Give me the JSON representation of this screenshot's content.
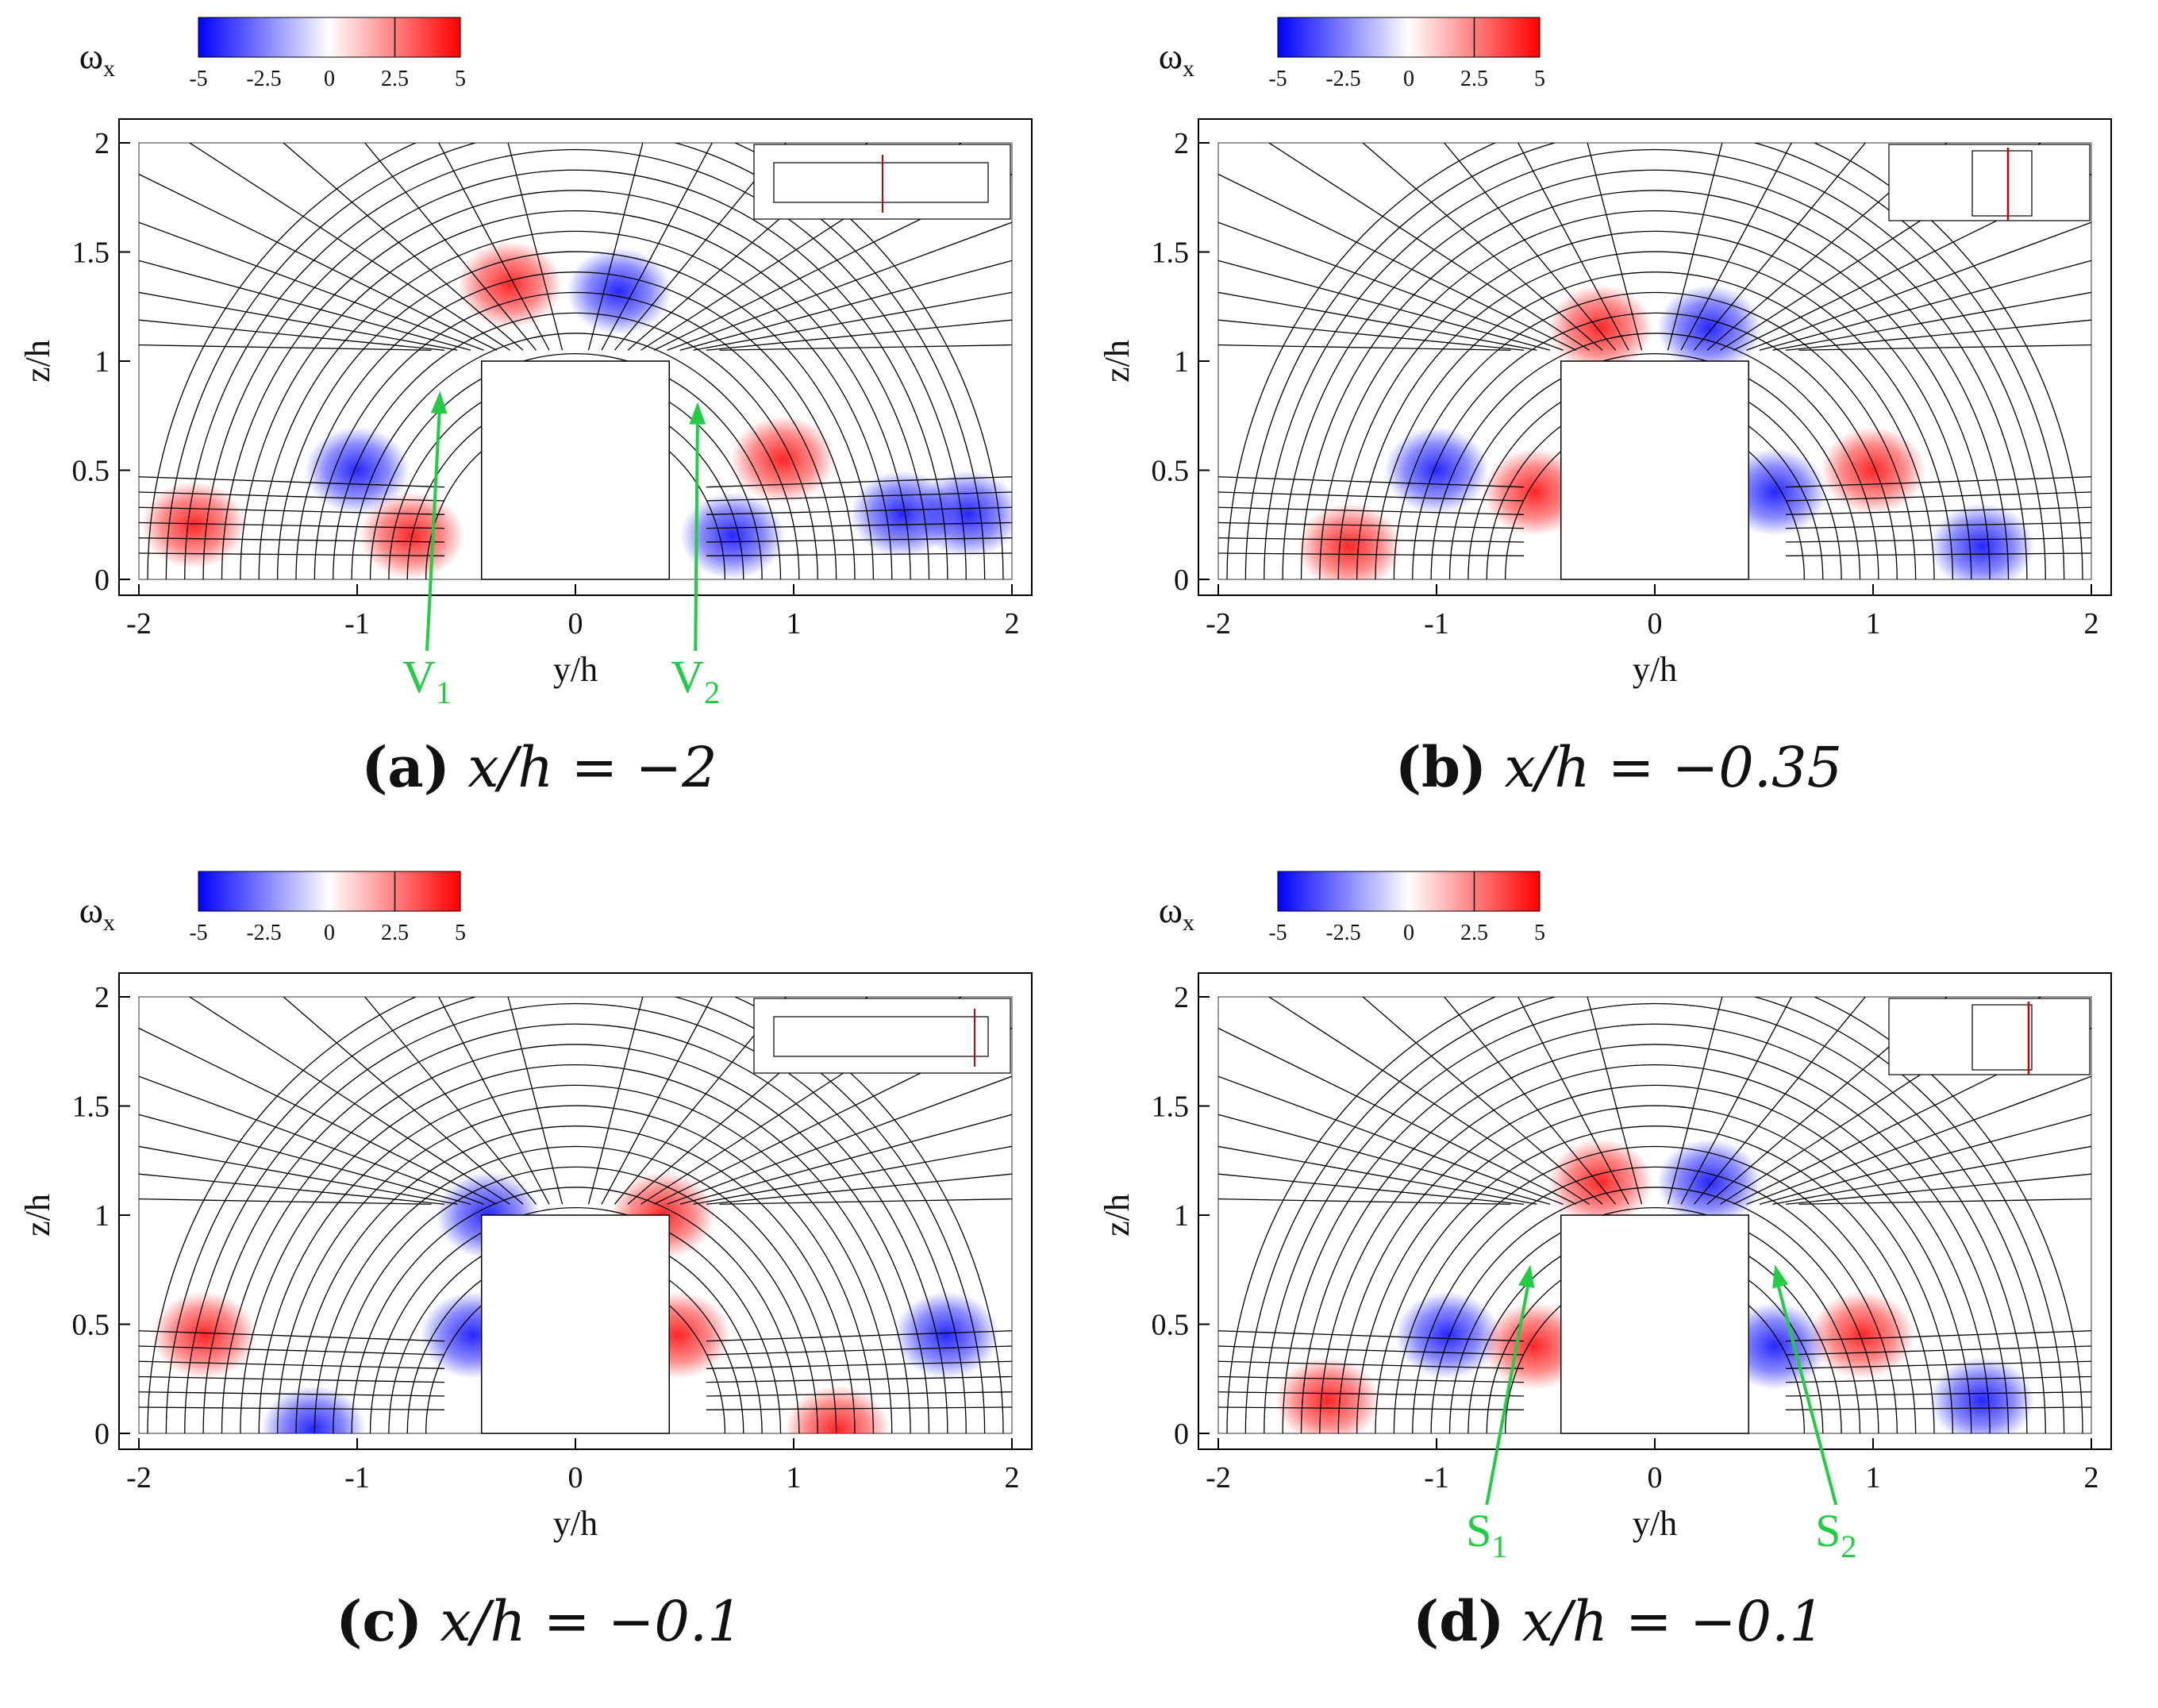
{
  "figure": {
    "colorbar": {
      "symbol": "ω",
      "subscript": "x",
      "ticks": [
        "-5",
        "-2.5",
        "0",
        "2.5",
        "5"
      ],
      "range": [
        -5,
        5
      ],
      "colors": {
        "negative": "#0000ff",
        "zero": "#ffffff",
        "positive": "#ff0000"
      }
    },
    "panels": [
      {
        "id": "a",
        "label": "(a)",
        "equation": "x/h = −2",
        "annotations": [
          {
            "main": "V",
            "sub": "1",
            "color": "#22cc44",
            "target_y": -0.62,
            "target_z": 0.87
          },
          {
            "main": "V",
            "sub": "2",
            "color": "#22cc44",
            "target_y": 0.56,
            "target_z": 0.82
          }
        ]
      },
      {
        "id": "b",
        "label": "(b)",
        "equation": "x/h = −0.35",
        "annotations": []
      },
      {
        "id": "c",
        "label": "(c)",
        "equation": "x/h = −0.1",
        "annotations": []
      },
      {
        "id": "d",
        "label": "(d)",
        "equation": "x/h = −0.1",
        "annotations": [
          {
            "main": "S",
            "sub": "1",
            "color": "#22cc44",
            "target_y": -0.57,
            "target_z": 0.78
          },
          {
            "main": "S",
            "sub": "2",
            "color": "#22cc44",
            "target_y": 0.55,
            "target_z": 0.78
          }
        ]
      }
    ]
  },
  "chart_data": [
    {
      "type": "heatmap",
      "title": "(a) x/h = −2",
      "xlabel": "y/h",
      "ylabel": "z/h",
      "xlim": [
        -2,
        2
      ],
      "ylim": [
        0,
        2
      ],
      "xticks": [
        "-2",
        "-1",
        "0",
        "1",
        "2"
      ],
      "yticks": [
        "0",
        "0.5",
        "1",
        "1.5",
        "2"
      ],
      "colorbar_label": "ωx",
      "colorbar_range": [
        -5,
        5
      ],
      "obstacle": {
        "y": [
          -0.43,
          0.43
        ],
        "z": [
          0,
          1
        ]
      },
      "vorticity_regions": [
        {
          "y": -1.75,
          "z": 0.25,
          "sign": "positive"
        },
        {
          "y": -1.0,
          "z": 0.5,
          "sign": "negative"
        },
        {
          "y": -0.75,
          "z": 0.2,
          "sign": "positive"
        },
        {
          "y": -0.3,
          "z": 1.35,
          "sign": "positive"
        },
        {
          "y": 0.2,
          "z": 1.32,
          "sign": "negative"
        },
        {
          "y": 0.72,
          "z": 0.2,
          "sign": "negative"
        },
        {
          "y": 0.95,
          "z": 0.55,
          "sign": "positive"
        },
        {
          "y": 1.5,
          "z": 0.3,
          "sign": "negative"
        },
        {
          "y": 1.8,
          "z": 0.3,
          "sign": "negative"
        }
      ]
    },
    {
      "type": "heatmap",
      "title": "(b) x/h = −0.35",
      "xlabel": "y/h",
      "ylabel": "z/h",
      "xlim": [
        -2,
        2
      ],
      "ylim": [
        0,
        2
      ],
      "xticks": [
        "-2",
        "-1",
        "0",
        "1",
        "2"
      ],
      "yticks": [
        "0",
        "0.5",
        "1",
        "1.5",
        "2"
      ],
      "colorbar_label": "ωx",
      "colorbar_range": [
        -5,
        5
      ],
      "obstacle": {
        "y": [
          -0.43,
          0.43
        ],
        "z": [
          0,
          1
        ]
      },
      "vorticity_regions": [
        {
          "y": -1.4,
          "z": 0.15,
          "sign": "positive"
        },
        {
          "y": -1.0,
          "z": 0.5,
          "sign": "negative"
        },
        {
          "y": -0.55,
          "z": 0.4,
          "sign": "positive"
        },
        {
          "y": -0.25,
          "z": 1.15,
          "sign": "positive"
        },
        {
          "y": 0.25,
          "z": 1.15,
          "sign": "negative"
        },
        {
          "y": 0.55,
          "z": 0.4,
          "sign": "negative"
        },
        {
          "y": 1.0,
          "z": 0.5,
          "sign": "positive"
        },
        {
          "y": 1.5,
          "z": 0.15,
          "sign": "negative"
        }
      ]
    },
    {
      "type": "heatmap",
      "title": "(c) x/h = −0.1",
      "xlabel": "y/h",
      "ylabel": "z/h",
      "xlim": [
        -2,
        2
      ],
      "ylim": [
        0,
        2
      ],
      "xticks": [
        "-2",
        "-1",
        "0",
        "1",
        "2"
      ],
      "yticks": [
        "0",
        "0.5",
        "1",
        "1.5",
        "2"
      ],
      "colorbar_label": "ωx",
      "colorbar_range": [
        -5,
        5
      ],
      "obstacle": {
        "y": [
          -0.43,
          0.43
        ],
        "z": [
          0,
          1
        ]
      },
      "vorticity_regions": [
        {
          "y": -1.7,
          "z": 0.45,
          "sign": "positive"
        },
        {
          "y": -1.2,
          "z": 0.02,
          "sign": "negative"
        },
        {
          "y": -0.47,
          "z": 0.45,
          "sign": "negative"
        },
        {
          "y": -0.4,
          "z": 1.0,
          "sign": "negative"
        },
        {
          "y": 0.4,
          "z": 1.0,
          "sign": "positive"
        },
        {
          "y": 0.47,
          "z": 0.45,
          "sign": "positive"
        },
        {
          "y": 1.2,
          "z": 0.02,
          "sign": "positive"
        },
        {
          "y": 1.7,
          "z": 0.45,
          "sign": "negative"
        }
      ]
    },
    {
      "type": "heatmap",
      "title": "(d) x/h = −0.1",
      "xlabel": "y/h",
      "ylabel": "z/h",
      "xlim": [
        -2,
        2
      ],
      "ylim": [
        0,
        2
      ],
      "xticks": [
        "-2",
        "-1",
        "0",
        "1",
        "2"
      ],
      "yticks": [
        "0",
        "0.5",
        "1",
        "1.5",
        "2"
      ],
      "colorbar_label": "ωx",
      "colorbar_range": [
        -5,
        5
      ],
      "obstacle": {
        "y": [
          -0.43,
          0.43
        ],
        "z": [
          0,
          1
        ]
      },
      "vorticity_regions": [
        {
          "y": -1.5,
          "z": 0.15,
          "sign": "positive"
        },
        {
          "y": -0.95,
          "z": 0.45,
          "sign": "negative"
        },
        {
          "y": -0.55,
          "z": 0.4,
          "sign": "positive"
        },
        {
          "y": -0.25,
          "z": 1.15,
          "sign": "positive"
        },
        {
          "y": 0.25,
          "z": 1.15,
          "sign": "negative"
        },
        {
          "y": 0.55,
          "z": 0.4,
          "sign": "negative"
        },
        {
          "y": 0.95,
          "z": 0.45,
          "sign": "positive"
        },
        {
          "y": 1.5,
          "z": 0.15,
          "sign": "negative"
        }
      ]
    }
  ]
}
